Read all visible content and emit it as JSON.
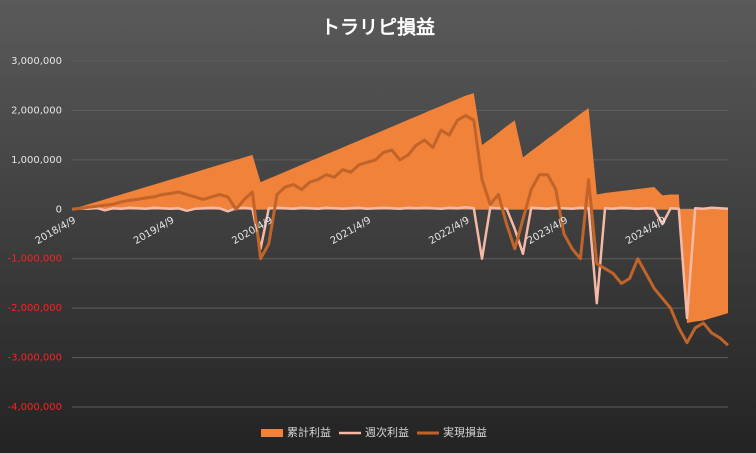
{
  "chart_data": {
    "type": "line",
    "title": "トラリピ損益",
    "categories": [
      "2018/4/9",
      null,
      null,
      null,
      null,
      null,
      null,
      null,
      null,
      null,
      null,
      null,
      "2019/4/9",
      null,
      null,
      null,
      null,
      null,
      null,
      null,
      null,
      null,
      null,
      null,
      "2020/4/9",
      null,
      null,
      null,
      null,
      null,
      null,
      null,
      null,
      null,
      null,
      null,
      "2021/4/9",
      null,
      null,
      null,
      null,
      null,
      null,
      null,
      null,
      null,
      null,
      null,
      "2022/4/9",
      null,
      null,
      null,
      null,
      null,
      null,
      null,
      null,
      null,
      null,
      null,
      "2023/4/9",
      null,
      null,
      null,
      null,
      null,
      null,
      null,
      null,
      null,
      null,
      null,
      "2024/4/9",
      null,
      null,
      null,
      null,
      null,
      null,
      null,
      null
    ],
    "series": [
      {
        "name": "累計利益",
        "style": "area",
        "color": "#f0823a",
        "values": [
          0,
          50000,
          100000,
          150000,
          200000,
          250000,
          300000,
          350000,
          400000,
          450000,
          500000,
          550000,
          600000,
          650000,
          700000,
          750000,
          800000,
          850000,
          900000,
          950000,
          1000000,
          1050000,
          1100000,
          550000,
          620000,
          690000,
          760000,
          830000,
          900000,
          970000,
          1040000,
          1110000,
          1180000,
          1250000,
          1320000,
          1390000,
          1460000,
          1530000,
          1600000,
          1670000,
          1740000,
          1810000,
          1880000,
          1950000,
          2020000,
          2090000,
          2160000,
          2230000,
          2300000,
          2350000,
          1300000,
          1420000,
          1550000,
          1680000,
          1800000,
          1050000,
          1180000,
          1300000,
          1430000,
          1550000,
          1680000,
          1800000,
          1930000,
          2050000,
          300000,
          330000,
          350000,
          370000,
          390000,
          410000,
          430000,
          450000,
          280000,
          300000,
          300000,
          -2300000,
          -2270000,
          -2250000,
          -2200000,
          -2150000,
          -2100000
        ]
      },
      {
        "name": "週次利益",
        "style": "line",
        "color": "#f6b9a6",
        "width": 2.5,
        "values": [
          0,
          20000,
          10000,
          30000,
          -20000,
          20000,
          10000,
          30000,
          20000,
          10000,
          30000,
          20000,
          10000,
          20000,
          -30000,
          10000,
          20000,
          30000,
          20000,
          -40000,
          20000,
          30000,
          10000,
          -800000,
          20000,
          30000,
          20000,
          10000,
          30000,
          20000,
          10000,
          30000,
          20000,
          10000,
          20000,
          30000,
          10000,
          20000,
          30000,
          20000,
          10000,
          30000,
          20000,
          30000,
          20000,
          10000,
          30000,
          20000,
          40000,
          20000,
          -1000000,
          30000,
          20000,
          10000,
          -400000,
          -900000,
          30000,
          20000,
          10000,
          30000,
          20000,
          10000,
          30000,
          20000,
          -1900000,
          20000,
          10000,
          30000,
          20000,
          10000,
          20000,
          10000,
          -300000,
          20000,
          10000,
          -2200000,
          20000,
          10000,
          30000,
          20000,
          10000
        ]
      },
      {
        "name": "実現損益",
        "style": "line",
        "color": "#c0642a",
        "width": 3,
        "values": [
          0,
          20000,
          40000,
          60000,
          80000,
          100000,
          150000,
          180000,
          200000,
          230000,
          250000,
          300000,
          320000,
          350000,
          300000,
          250000,
          200000,
          250000,
          300000,
          250000,
          0,
          200000,
          350000,
          -1000000,
          -700000,
          300000,
          450000,
          500000,
          400000,
          550000,
          600000,
          700000,
          650000,
          800000,
          750000,
          900000,
          950000,
          1000000,
          1150000,
          1200000,
          1000000,
          1100000,
          1300000,
          1400000,
          1250000,
          1600000,
          1500000,
          1800000,
          1900000,
          1800000,
          600000,
          100000,
          300000,
          -300000,
          -800000,
          -200000,
          400000,
          700000,
          700000,
          400000,
          -500000,
          -800000,
          -1000000,
          600000,
          -1100000,
          -1200000,
          -1300000,
          -1500000,
          -1400000,
          -1000000,
          -1300000,
          -1600000,
          -1800000,
          -2000000,
          -2400000,
          -2700000,
          -2400000,
          -2300000,
          -2500000,
          -2600000,
          -2750000
        ]
      }
    ],
    "ylim": [
      -4000000,
      3000000
    ],
    "yticks": [
      {
        "value": -4000000,
        "label": "-4,000,000"
      },
      {
        "value": -3000000,
        "label": "-3,000,000"
      },
      {
        "value": -2000000,
        "label": "-2,000,000"
      },
      {
        "value": -1000000,
        "label": "-1,000,000"
      },
      0,
      {
        "value": 1000000,
        "label": "1,000,000"
      },
      {
        "value": 2000000,
        "label": "2,000,000"
      },
      {
        "value": 3000000,
        "label": "3,000,000"
      }
    ],
    "grid": true,
    "legend": "bottom",
    "tick_color": "#e6e6e6",
    "negative_tick_color": "#ff2020"
  }
}
